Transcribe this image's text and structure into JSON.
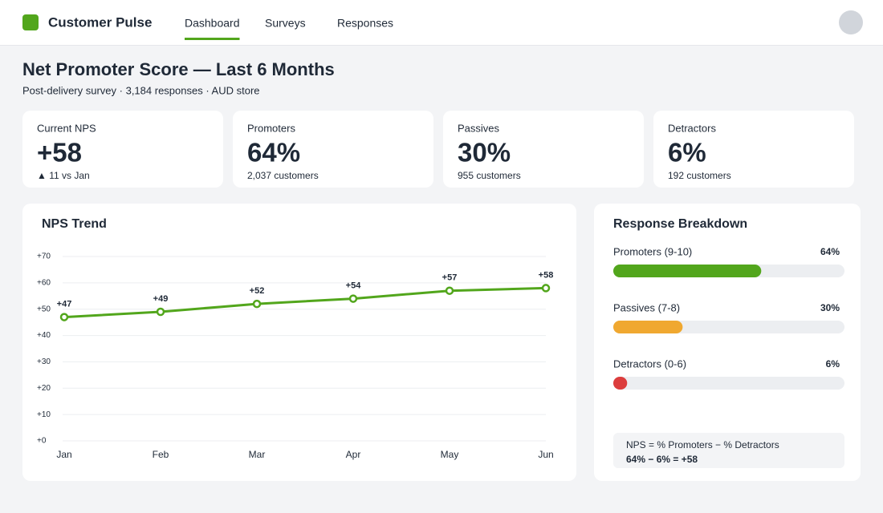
{
  "header": {
    "brand": "Customer Pulse",
    "nav": [
      {
        "label": "Dashboard",
        "active": true
      },
      {
        "label": "Surveys",
        "active": false
      },
      {
        "label": "Responses",
        "active": false
      }
    ]
  },
  "page": {
    "title": "Net Promoter Score — Last 6 Months",
    "subtitle": "Post-delivery survey · 3,184 responses · AUD store"
  },
  "kpis": [
    {
      "label": "Current NPS",
      "value": "+58",
      "sub": "▲ 11 vs Jan",
      "color": "#52a61c"
    },
    {
      "label": "Promoters",
      "value": "64%",
      "sub": "2,037 customers",
      "color": "#1f2937"
    },
    {
      "label": "Passives",
      "value": "30%",
      "sub": "955 customers",
      "color": "#1f2937"
    },
    {
      "label": "Detractors",
      "value": "6%",
      "sub": "192 customers",
      "color": "#d63d3d"
    }
  ],
  "chart_data": {
    "type": "line",
    "title": "NPS Trend",
    "categories": [
      "Jan",
      "Feb",
      "Mar",
      "Apr",
      "May",
      "Jun"
    ],
    "values": [
      47,
      49,
      52,
      54,
      57,
      58
    ],
    "value_labels": [
      "+47",
      "+49",
      "+52",
      "+54",
      "+57",
      "+58"
    ],
    "color": "#52a61c",
    "ylim": [
      0,
      70
    ],
    "yticks": [
      {
        "value": 0,
        "label": "+0"
      },
      {
        "value": 10,
        "label": "+10"
      },
      {
        "value": 20,
        "label": "+20"
      },
      {
        "value": 30,
        "label": "+30"
      },
      {
        "value": 40,
        "label": "+40"
      },
      {
        "value": 50,
        "label": "+50"
      },
      {
        "value": 60,
        "label": "+60"
      },
      {
        "value": 70,
        "label": "+70"
      }
    ],
    "grid": true
  },
  "breakdown": {
    "title": "Response Breakdown",
    "xlim": [
      0,
      100
    ],
    "items": [
      {
        "label": "Promoters (9-10)",
        "value": 64,
        "value_label": "64%",
        "color": "#52a61c"
      },
      {
        "label": "Passives (7-8)",
        "value": 30,
        "value_label": "30%",
        "color": "#f0a830"
      },
      {
        "label": "Detractors (0-6)",
        "value": 6,
        "value_label": "6%",
        "color": "#dc3d3d"
      }
    ],
    "formula": "NPS = % Promoters − % Detractors",
    "calculation": "64% − 6% = +58"
  }
}
